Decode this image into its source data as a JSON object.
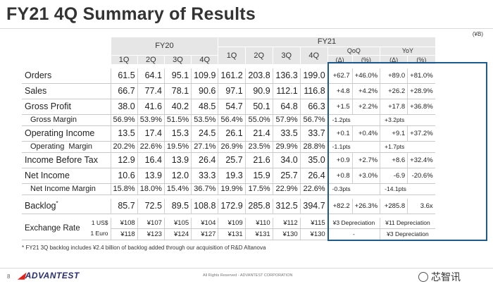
{
  "title": "FY21 4Q Summary of Results",
  "unit": "(¥B)",
  "headers": {
    "fy20": "FY20",
    "fy21": "FY21",
    "quarters": [
      "1Q",
      "2Q",
      "3Q",
      "4Q",
      "1Q",
      "2Q",
      "3Q",
      "4Q"
    ],
    "qoq": "QoQ",
    "yoy": "YoY",
    "delta": "(Δ)",
    "pct": "(%)"
  },
  "rows": [
    {
      "label": "Orders",
      "values": [
        "61.5",
        "64.1",
        "95.1",
        "109.9",
        "161.2",
        "203.8",
        "136.3",
        "199.0"
      ],
      "qoq_d": "+62.7",
      "qoq_p": "+46.0%",
      "yoy_d": "+89.0",
      "yoy_p": "+81.0%"
    },
    {
      "label": "Sales",
      "values": [
        "66.7",
        "77.4",
        "78.1",
        "90.6",
        "97.1",
        "90.9",
        "112.1",
        "116.8"
      ],
      "qoq_d": "+4.8",
      "qoq_p": "+4.2%",
      "yoy_d": "+26.2",
      "yoy_p": "+28.9%"
    },
    {
      "label": "Gross Profit",
      "values": [
        "38.0",
        "41.6",
        "40.2",
        "48.5",
        "54.7",
        "50.1",
        "64.8",
        "66.3"
      ],
      "qoq_d": "+1.5",
      "qoq_p": "+2.2%",
      "yoy_d": "+17.8",
      "yoy_p": "+36.8%"
    },
    {
      "label": "Gross Margin",
      "values": [
        "56.9%",
        "53.9%",
        "51.5%",
        "53.5%",
        "56.4%",
        "55.0%",
        "57.9%",
        "56.7%"
      ],
      "qoq": "-1.2pts",
      "yoy": "+3.2pts"
    },
    {
      "label": "Operating Income",
      "values": [
        "13.5",
        "17.4",
        "15.3",
        "24.5",
        "26.1",
        "21.4",
        "33.5",
        "33.7"
      ],
      "qoq_d": "+0.1",
      "qoq_p": "+0.4%",
      "yoy_d": "+9.1",
      "yoy_p": "+37.2%"
    },
    {
      "label": "Operating  Margin",
      "values": [
        "20.2%",
        "22.6%",
        "19.5%",
        "27.1%",
        "26.9%",
        "23.5%",
        "29.9%",
        "28.8%"
      ],
      "qoq": "-1.1pts",
      "yoy": "+1.7pts"
    },
    {
      "label": "Income Before Tax",
      "values": [
        "12.9",
        "16.4",
        "13.9",
        "26.4",
        "25.7",
        "21.6",
        "34.0",
        "35.0"
      ],
      "qoq_d": "+0.9",
      "qoq_p": "+2.7%",
      "yoy_d": "+8.6",
      "yoy_p": "+32.4%"
    },
    {
      "label": "Net Income",
      "values": [
        "10.6",
        "13.9",
        "12.0",
        "33.3",
        "19.3",
        "15.9",
        "25.7",
        "26.4"
      ],
      "qoq_d": "+0.8",
      "qoq_p": "+3.0%",
      "yoy_d": "-6.9",
      "yoy_p": "-20.6%"
    },
    {
      "label": "Net Income Margin",
      "values": [
        "15.8%",
        "18.0%",
        "15.4%",
        "36.7%",
        "19.9%",
        "17.5%",
        "22.9%",
        "22.6%"
      ],
      "qoq": "-0.3pts",
      "yoy": "-14.1pts"
    },
    {
      "label": "Backlog",
      "label_mark": "*",
      "values": [
        "85.7",
        "72.5",
        "89.5",
        "108.8",
        "172.9",
        "285.8",
        "312.5",
        "394.7"
      ],
      "qoq_d": "+82.2",
      "qoq_p": "+26.3%",
      "yoy_d": "+285.8",
      "yoy_p": "3.6x"
    }
  ],
  "exchange": {
    "label": "Exchange Rate",
    "usd_label": "1 US$",
    "eur_label": "1 Euro",
    "usd": [
      "¥108",
      "¥107",
      "¥105",
      "¥104",
      "¥109",
      "¥110",
      "¥112",
      "¥115"
    ],
    "eur": [
      "¥118",
      "¥123",
      "¥124",
      "¥127",
      "¥131",
      "¥131",
      "¥130",
      "¥130"
    ],
    "usd_qoq": "¥3 Depreciation",
    "usd_yoy": "¥11 Depreciation",
    "eur_qoq": "-",
    "eur_yoy": "¥3 Depreciation"
  },
  "footnote": "* FY21 3Q backlog includes ¥2.4 billion of backlog added through our acquisition of R&D Altanova",
  "footer": {
    "page": "8",
    "logo": "ADVANTEST",
    "rights": "All Rights Reserved - ADVANTEST CORPORATION",
    "watermark": "芯智讯"
  },
  "colors": {
    "highlight_box": "#1e5a8a",
    "header_bg": "#e6e6e6",
    "logo": "#2a2f6e",
    "logo_mark": "#e0241b"
  }
}
